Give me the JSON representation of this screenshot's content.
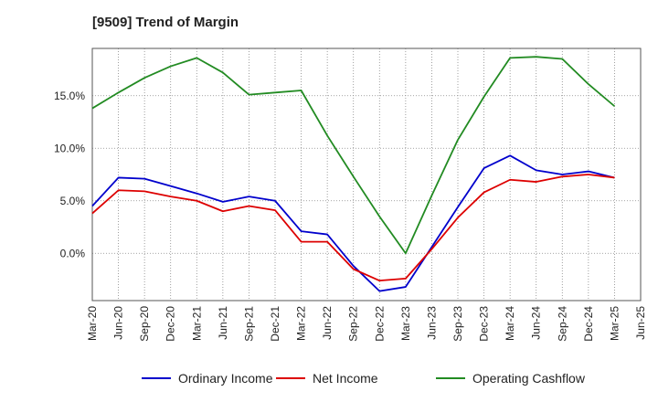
{
  "chart_data": {
    "type": "line",
    "title": "[9509]  Trend of Margin",
    "x": [
      "Mar-20",
      "Jun-20",
      "Sep-20",
      "Dec-20",
      "Mar-21",
      "Jun-21",
      "Sep-21",
      "Dec-21",
      "Mar-22",
      "Jun-22",
      "Sep-22",
      "Dec-22",
      "Mar-23",
      "Jun-23",
      "Sep-23",
      "Dec-23",
      "Mar-24",
      "Jun-24",
      "Sep-24",
      "Dec-24",
      "Mar-25",
      "Jun-25"
    ],
    "y_ticks": [
      {
        "value": 0,
        "label": "0.0%"
      },
      {
        "value": 5,
        "label": "5.0%"
      },
      {
        "value": 10,
        "label": "10.0%"
      },
      {
        "value": 15,
        "label": "15.0%"
      }
    ],
    "ylim": [
      -4.5,
      19.5
    ],
    "grid": true,
    "legend_position": "bottom",
    "series": [
      {
        "name": "Ordinary Income",
        "color": "#0000cc",
        "values": [
          4.5,
          7.2,
          7.1,
          6.4,
          5.7,
          4.9,
          5.4,
          5.0,
          2.1,
          1.8,
          -1.2,
          -3.6,
          -3.2,
          0.6,
          4.4,
          8.1,
          9.3,
          7.9,
          7.5,
          7.8,
          7.2,
          null
        ]
      },
      {
        "name": "Net Income",
        "color": "#dd0000",
        "values": [
          3.8,
          6.0,
          5.9,
          5.4,
          5.0,
          4.0,
          4.5,
          4.1,
          1.1,
          1.1,
          -1.5,
          -2.6,
          -2.4,
          0.4,
          3.4,
          5.8,
          7.0,
          6.8,
          7.3,
          7.5,
          7.2,
          null
        ]
      },
      {
        "name": "Operating Cashflow",
        "color": "#228b22",
        "values": [
          13.8,
          15.3,
          16.7,
          17.8,
          18.6,
          17.2,
          15.1,
          15.3,
          15.5,
          11.2,
          7.3,
          3.5,
          0.0,
          5.5,
          10.8,
          14.9,
          18.6,
          18.7,
          18.5,
          16.1,
          14.0,
          null
        ]
      }
    ]
  }
}
